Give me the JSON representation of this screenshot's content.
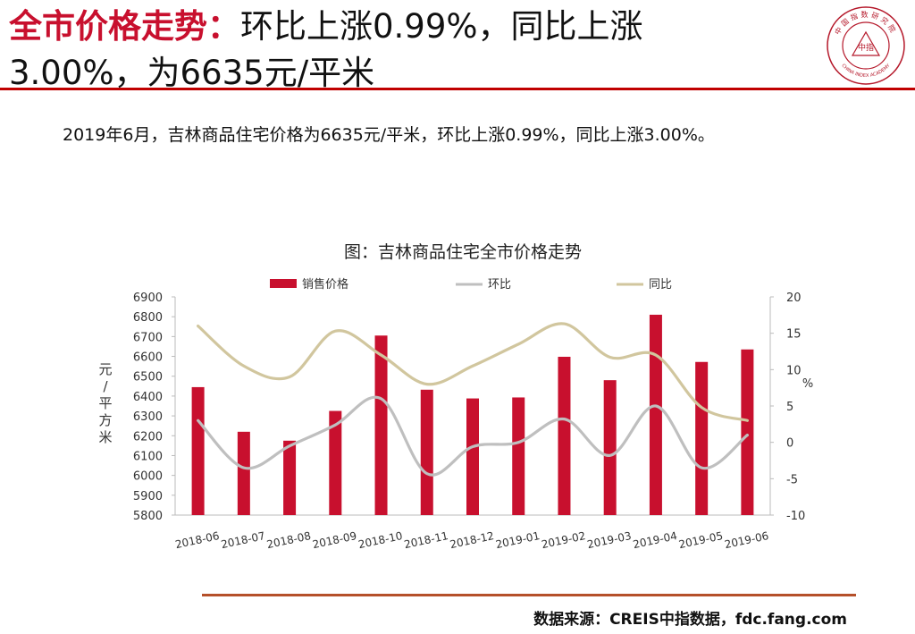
{
  "header": {
    "title_bold": "全市价格走势：",
    "title_line1_rest": "环比上涨0.99%，同比上涨",
    "title_line2": "3.00%，为6635元/平米"
  },
  "logo": {
    "center_text": "中指",
    "arc_top": "中国指数研究院",
    "arc_bottom": "CHINA INDEX ACADEMY"
  },
  "summary": "2019年6月，吉林商品住宅价格为6635元/平米，环比上涨0.99%，同比上涨3.00%。",
  "chart_data": {
    "type": "bar",
    "title": "图：吉林商品住宅全市价格走势",
    "categories": [
      "2018-06",
      "2018-07",
      "2018-08",
      "2018-09",
      "2018-10",
      "2018-11",
      "2018-12",
      "2019-01",
      "2019-02",
      "2019-03",
      "2019-04",
      "2019-05",
      "2019-06"
    ],
    "series": [
      {
        "name": "销售价格",
        "type": "bar",
        "axis": "left",
        "color": "#c8102e",
        "values": [
          6445,
          6220,
          6175,
          6325,
          6705,
          6432,
          6388,
          6393,
          6598,
          6480,
          6810,
          6572,
          6635
        ]
      },
      {
        "name": "环比",
        "type": "line",
        "axis": "right",
        "color": "#bfbfbf",
        "values": [
          3.0,
          -3.5,
          -0.5,
          2.4,
          6.0,
          -4.3,
          -0.6,
          0.0,
          3.2,
          -1.8,
          5.0,
          -3.5,
          0.99
        ]
      },
      {
        "name": "同比",
        "type": "line",
        "axis": "right",
        "color": "#d1c69e",
        "values": [
          16.0,
          10.5,
          9.0,
          15.3,
          12.0,
          8.0,
          10.5,
          13.5,
          16.3,
          11.7,
          12.0,
          4.8,
          3.0
        ]
      }
    ],
    "ylabel_left": "元/平方米",
    "ylabel_right": "%",
    "ylim_left": [
      5800,
      6900
    ],
    "yticks_left": [
      "5800",
      "5900",
      "6000",
      "6100",
      "6200",
      "6300",
      "6400",
      "6500",
      "6600",
      "6700",
      "6800",
      "6900"
    ],
    "ylim_right": [
      -10,
      20
    ],
    "yticks_right": [
      "-10",
      "-5",
      "0",
      "5",
      "10",
      "15",
      "20"
    ],
    "legend_position": "top"
  },
  "source": "数据来源：CREIS中指数据，fdc.fang.com"
}
